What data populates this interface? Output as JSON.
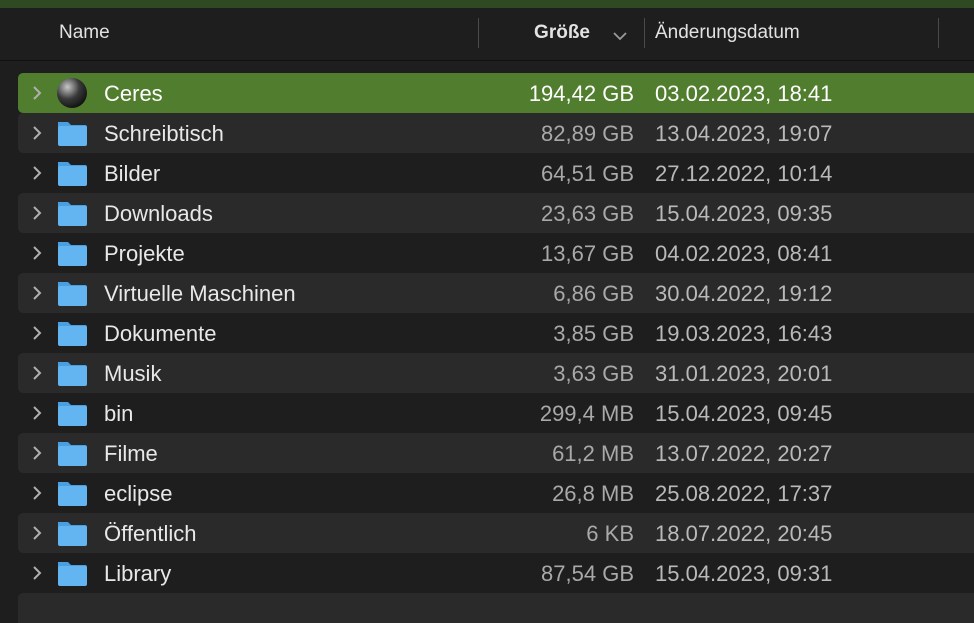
{
  "header": {
    "name": "Name",
    "size": "Größe",
    "date": "Änderungsdatum"
  },
  "rows": [
    {
      "name": "Ceres",
      "size": "194,42 GB",
      "date": "03.02.2023, 18:41"
    },
    {
      "name": "Schreibtisch",
      "size": "82,89 GB",
      "date": "13.04.2023, 19:07"
    },
    {
      "name": "Bilder",
      "size": "64,51 GB",
      "date": "27.12.2022, 10:14"
    },
    {
      "name": "Downloads",
      "size": "23,63 GB",
      "date": "15.04.2023, 09:35"
    },
    {
      "name": "Projekte",
      "size": "13,67 GB",
      "date": "04.02.2023, 08:41"
    },
    {
      "name": "Virtuelle Maschinen",
      "size": "6,86 GB",
      "date": "30.04.2022, 19:12"
    },
    {
      "name": "Dokumente",
      "size": "3,85 GB",
      "date": "19.03.2023, 16:43"
    },
    {
      "name": "Musik",
      "size": "3,63 GB",
      "date": "31.01.2023, 20:01"
    },
    {
      "name": "bin",
      "size": "299,4 MB",
      "date": "15.04.2023, 09:45"
    },
    {
      "name": "Filme",
      "size": "61,2 MB",
      "date": "13.07.2022, 20:27"
    },
    {
      "name": "eclipse",
      "size": "26,8 MB",
      "date": "25.08.2022, 17:37"
    },
    {
      "name": "Öffentlich",
      "size": "6 KB",
      "date": "18.07.2022, 20:45"
    },
    {
      "name": "Library",
      "size": "87,54 GB",
      "date": "15.04.2023, 09:31"
    }
  ]
}
